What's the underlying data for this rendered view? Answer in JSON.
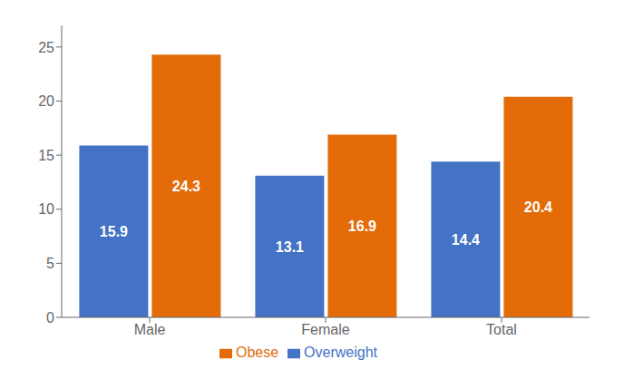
{
  "chart_data": {
    "type": "bar",
    "categories": [
      "Male",
      "Female",
      "Total"
    ],
    "series": [
      {
        "name": "Overweight",
        "color": "#4472C4",
        "values": [
          15.9,
          13.1,
          14.4
        ]
      },
      {
        "name": "Obese",
        "color": "#E36C09",
        "values": [
          24.3,
          16.9,
          20.4
        ]
      }
    ],
    "ylim": [
      0,
      27
    ],
    "yticks": [
      0,
      5,
      10,
      15,
      20,
      25
    ],
    "grid": false,
    "legend": "bottom",
    "data_labels": true
  }
}
